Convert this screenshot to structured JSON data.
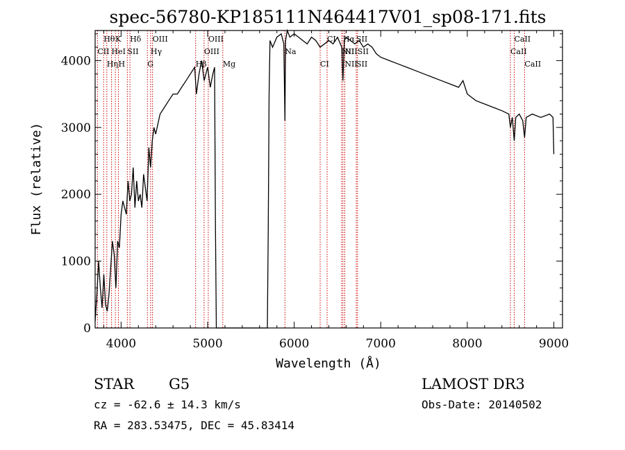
{
  "chart_data": {
    "type": "line",
    "title": "spec-56780-KP185111N464417V01_sp08-171.fits",
    "xlabel": "Wavelength (Å)",
    "ylabel": "Flux (relative)",
    "xlim": [
      3700,
      9100
    ],
    "ylim": [
      0,
      4450
    ],
    "x_ticks": [
      4000,
      5000,
      6000,
      7000,
      8000,
      9000
    ],
    "y_ticks": [
      0,
      1000,
      2000,
      3000,
      4000
    ],
    "x_tick_labels": [
      "4000",
      "5000",
      "6000",
      "7000",
      "8000",
      "9000"
    ],
    "y_tick_labels": [
      "0",
      "1000",
      "2000",
      "3000",
      "4000"
    ],
    "grid": false,
    "series": [
      {
        "x": [
          3700,
          3720,
          3740,
          3760,
          3780,
          3800,
          3820,
          3840,
          3860,
          3880,
          3900,
          3920,
          3940,
          3960,
          3980,
          4000,
          4020,
          4040,
          4060,
          4080,
          4100,
          4120,
          4140,
          4160,
          4180,
          4200,
          4220,
          4240,
          4260,
          4280,
          4300,
          4320,
          4340,
          4360,
          4380,
          4400,
          4450,
          4500,
          4550,
          4600,
          4650,
          4700,
          4750,
          4800,
          4850,
          4870,
          4900,
          4930,
          4960,
          5000,
          5030,
          5060,
          5080,
          5090,
          5100,
          5690,
          5700,
          5710,
          5720,
          5750,
          5800,
          5850,
          5880,
          5893,
          5900,
          5920,
          5950,
          6000,
          6050,
          6100,
          6150,
          6200,
          6250,
          6300,
          6350,
          6400,
          6450,
          6500,
          6550,
          6563,
          6580,
          6600,
          6650,
          6700,
          6750,
          6800,
          6850,
          6900,
          6950,
          7000,
          7100,
          7200,
          7300,
          7400,
          7500,
          7600,
          7700,
          7800,
          7900,
          7950,
          8000,
          8050,
          8100,
          8200,
          8300,
          8400,
          8480,
          8498,
          8520,
          8542,
          8560,
          8600,
          8640,
          8662,
          8680,
          8750,
          8850,
          8950,
          8990,
          9000
        ],
        "y": [
          100,
          500,
          1000,
          600,
          300,
          800,
          350,
          250,
          500,
          900,
          1300,
          1100,
          600,
          1300,
          1200,
          1700,
          1900,
          1800,
          1700,
          2200,
          1900,
          2000,
          2400,
          1800,
          2200,
          1900,
          2000,
          1800,
          2300,
          2100,
          1900,
          2700,
          2400,
          2800,
          3000,
          2900,
          3200,
          3300,
          3400,
          3500,
          3500,
          3600,
          3700,
          3800,
          3900,
          3500,
          3800,
          4000,
          3700,
          3900,
          3600,
          3800,
          3900,
          1600,
          0,
          0,
          1500,
          3500,
          4300,
          4200,
          4350,
          4400,
          4250,
          3100,
          4300,
          4450,
          4350,
          4400,
          4350,
          4300,
          4250,
          4350,
          4300,
          4200,
          4250,
          4300,
          4250,
          4350,
          4200,
          3700,
          4300,
          4350,
          4300,
          4250,
          4300,
          4200,
          4250,
          4200,
          4100,
          4050,
          4000,
          3950,
          3900,
          3850,
          3800,
          3750,
          3700,
          3650,
          3600,
          3700,
          3500,
          3450,
          3400,
          3350,
          3300,
          3250,
          3200,
          3000,
          3150,
          2800,
          3150,
          3200,
          3100,
          2850,
          3150,
          3200,
          3150,
          3200,
          3150,
          2600
        ]
      }
    ],
    "line_markers": [
      {
        "label": "Hθ",
        "x": 3798,
        "row": 0
      },
      {
        "label": "K",
        "x": 3934,
        "row": 0
      },
      {
        "label": "Hδ",
        "x": 4102,
        "row": 0
      },
      {
        "label": "OIII",
        "x": 4363,
        "row": 0
      },
      {
        "label": "OIII",
        "x": 5007,
        "row": 0
      },
      {
        "label": "CI",
        "x": 6380,
        "row": 0
      },
      {
        "label": "Hα",
        "x": 6563,
        "row": 0
      },
      {
        "label": "SII",
        "x": 6717,
        "row": 0
      },
      {
        "label": "CaII",
        "x": 8542,
        "row": 0
      },
      {
        "label": "CII",
        "x": 3727,
        "row": 1
      },
      {
        "label": "HeI",
        "x": 3889,
        "row": 1
      },
      {
        "label": "SII",
        "x": 4072,
        "row": 1
      },
      {
        "label": "Hγ",
        "x": 4341,
        "row": 1
      },
      {
        "label": "OIII",
        "x": 4959,
        "row": 1
      },
      {
        "label": "Na",
        "x": 5893,
        "row": 1
      },
      {
        "label": "NII",
        "x": 6548,
        "row": 1
      },
      {
        "label": "NII",
        "x": 6584,
        "row": 1
      },
      {
        "label": "SII",
        "x": 6731,
        "row": 1
      },
      {
        "label": "CaII",
        "x": 8498,
        "row": 1
      },
      {
        "label": "Hη",
        "x": 3835,
        "row": 2
      },
      {
        "label": "H",
        "x": 3969,
        "row": 2
      },
      {
        "label": "G",
        "x": 4304,
        "row": 2
      },
      {
        "label": "Hβ",
        "x": 4861,
        "row": 2
      },
      {
        "label": "Mg",
        "x": 5175,
        "row": 2
      },
      {
        "label": "CI",
        "x": 6300,
        "row": 2
      },
      {
        "label": "NII",
        "x": 6584,
        "row": 2
      },
      {
        "label": "SII",
        "x": 6717,
        "row": 2
      },
      {
        "label": "CaII",
        "x": 8662,
        "row": 2
      }
    ]
  },
  "info": {
    "object_class": "STAR",
    "subclass": "G5",
    "survey": "LAMOST DR3",
    "cz": "cz = -62.6 ± 14.3 km/s",
    "obs_date": "Obs-Date: 20140502",
    "coords": "RA = 283.53475, DEC =  45.83414"
  },
  "colors": {
    "line_marker": "#cc0000",
    "spectrum": "#000000"
  }
}
